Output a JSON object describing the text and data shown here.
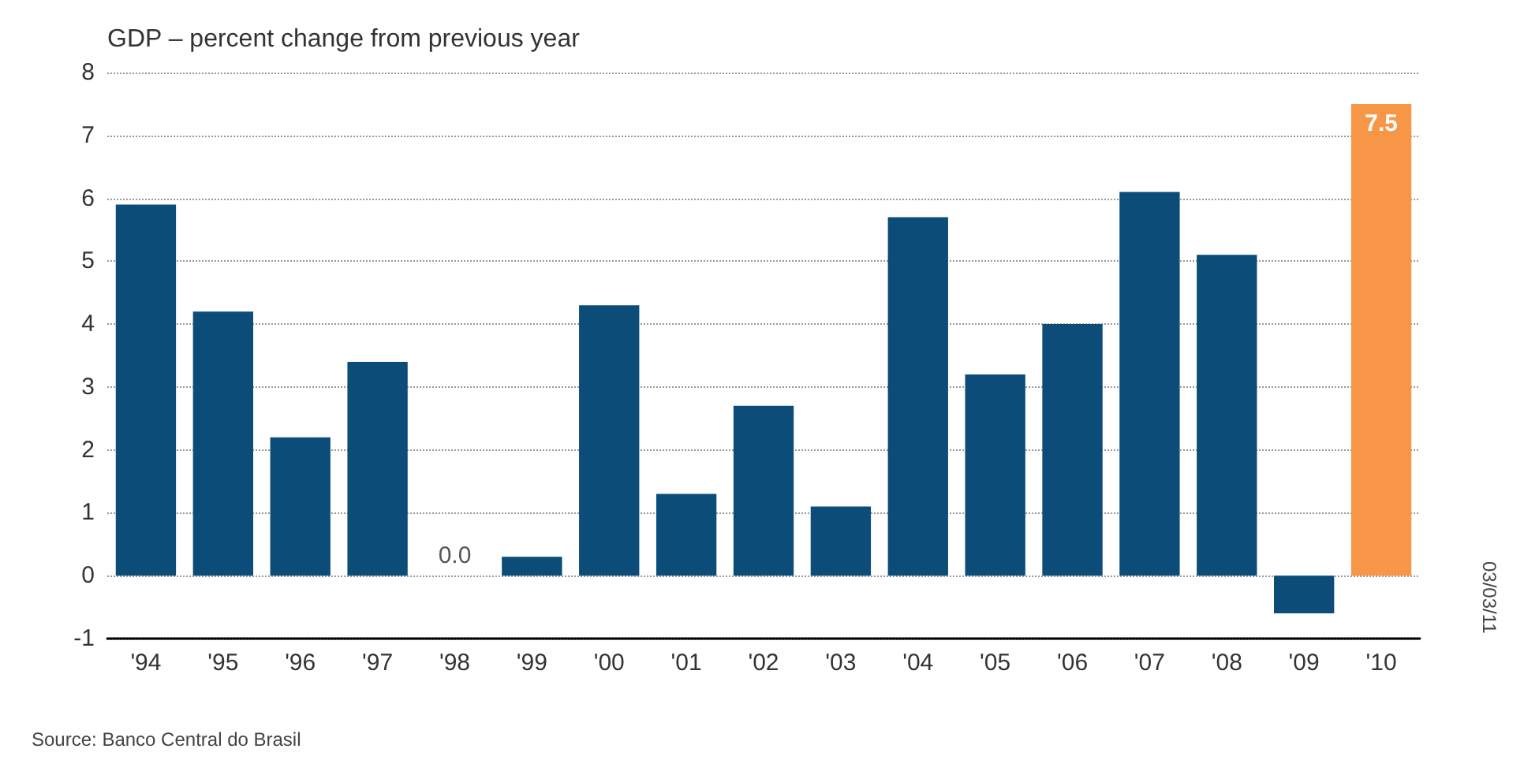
{
  "chart_data": {
    "type": "bar",
    "title": "GDP – percent change from previous year",
    "categories": [
      "'94",
      "'95",
      "'96",
      "'97",
      "'98",
      "'99",
      "'00",
      "'01",
      "'02",
      "'03",
      "'04",
      "'05",
      "'06",
      "'07",
      "'08",
      "'09",
      "'10"
    ],
    "values": [
      5.9,
      4.2,
      2.2,
      3.4,
      0.0,
      0.3,
      4.3,
      1.3,
      2.7,
      1.1,
      5.7,
      3.2,
      4.0,
      6.1,
      5.1,
      -0.6,
      7.5
    ],
    "colors": [
      "#0b4d78",
      "#0b4d78",
      "#0b4d78",
      "#0b4d78",
      "#0b4d78",
      "#0b4d78",
      "#0b4d78",
      "#0b4d78",
      "#0b4d78",
      "#0b4d78",
      "#0b4d78",
      "#0b4d78",
      "#0b4d78",
      "#0b4d78",
      "#0b4d78",
      "#0b4d78",
      "#f79646"
    ],
    "value_labels": [
      null,
      null,
      null,
      null,
      "0.0",
      null,
      null,
      null,
      null,
      null,
      null,
      null,
      null,
      null,
      null,
      null,
      "7.5"
    ],
    "ylim": [
      -1,
      8
    ],
    "yticks": [
      -1,
      0,
      1,
      2,
      3,
      4,
      5,
      6,
      7,
      8
    ],
    "grid": "y",
    "annotations": [
      "Source: Banco Central do Brasil",
      "03/03/11"
    ]
  }
}
